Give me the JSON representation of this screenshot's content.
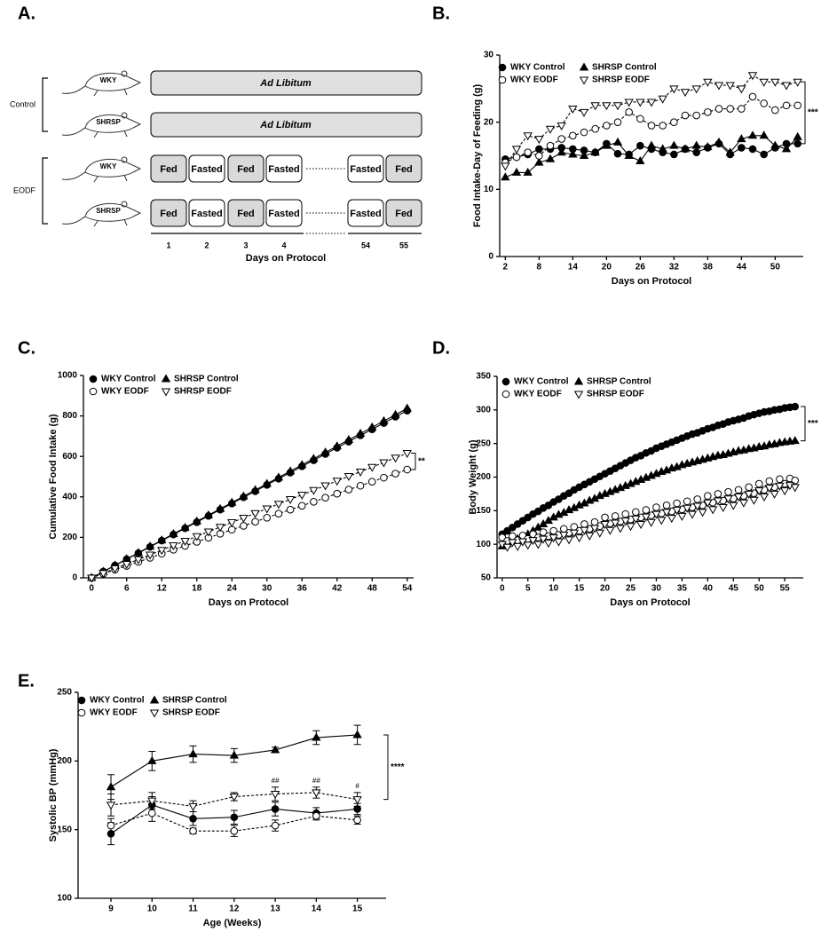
{
  "diagram": {
    "label": "A.",
    "groups": [
      {
        "name": "Control",
        "rows": [
          {
            "strain": "WKY",
            "cells": [
              {
                "text": "Ad Libitum",
                "fill": "#e0e0e0"
              }
            ]
          },
          {
            "strain": "SHRSP",
            "cells": [
              {
                "text": "Ad Libitum",
                "fill": "#e0e0e0"
              }
            ]
          }
        ]
      },
      {
        "name": "EODF",
        "rows": [
          {
            "strain": "WKY",
            "cells": [
              {
                "text": "Fed",
                "fill": "#d9d9d9"
              },
              {
                "text": "Fasted",
                "fill": "#ffffff"
              },
              {
                "text": "Fed",
                "fill": "#d9d9d9"
              },
              {
                "text": "Fasted",
                "fill": "#ffffff"
              },
              {
                "text": "Fasted",
                "fill": "#ffffff"
              },
              {
                "text": "Fed",
                "fill": "#d9d9d9"
              }
            ]
          },
          {
            "strain": "SHRSP",
            "cells": [
              {
                "text": "Fed",
                "fill": "#d9d9d9"
              },
              {
                "text": "Fasted",
                "fill": "#ffffff"
              },
              {
                "text": "Fed",
                "fill": "#d9d9d9"
              },
              {
                "text": "Fasted",
                "fill": "#ffffff"
              },
              {
                "text": "Fasted",
                "fill": "#ffffff"
              },
              {
                "text": "Fed",
                "fill": "#d9d9d9"
              }
            ]
          }
        ]
      }
    ],
    "days": [
      1,
      2,
      3,
      4,
      54,
      55
    ],
    "axis_label": "Days on Protocol"
  },
  "chart_data": [
    {
      "type": "line",
      "label": "B.",
      "y_label": "Food Intake-Day of Feeding (g)",
      "x_label": "Days on Protocol",
      "significance": "***",
      "x": [
        2,
        4,
        6,
        8,
        10,
        12,
        14,
        16,
        18,
        20,
        22,
        24,
        26,
        28,
        30,
        32,
        34,
        36,
        38,
        40,
        42,
        44,
        46,
        48,
        50,
        52,
        54
      ],
      "xlim": [
        1,
        55
      ],
      "xticks": [
        2,
        8,
        14,
        20,
        26,
        32,
        38,
        44,
        50
      ],
      "ylim": [
        0,
        30
      ],
      "yticks": [
        0,
        10,
        20,
        30
      ],
      "series": [
        {
          "name": "WKY Control",
          "color": "#000000",
          "marker": "circle-filled",
          "line_style": "solid",
          "values": [
            14.5,
            14.8,
            15.2,
            16,
            16,
            16.2,
            16,
            15.8,
            15.5,
            16.8,
            15.3,
            15.2,
            16.5,
            16,
            15.5,
            15.2,
            16,
            15.5,
            16.2,
            16.8,
            15.2,
            16.2,
            16,
            15.2,
            16.2,
            16.8,
            16.8
          ]
        },
        {
          "name": "SHRSP Control",
          "color": "#000000",
          "marker": "triangle-filled",
          "line_style": "solid",
          "values": [
            11.8,
            12.5,
            12.5,
            14,
            14.5,
            15.5,
            15.2,
            15,
            15.5,
            16.5,
            17,
            15,
            14.2,
            16.5,
            16,
            16.5,
            16,
            16.5,
            16.3,
            17,
            15.5,
            17.5,
            18,
            18,
            16.5,
            16,
            17.8
          ]
        },
        {
          "name": "WKY EODF",
          "color": "#000000",
          "marker": "circle-open",
          "line_style": "dashed",
          "values": [
            14,
            14.8,
            15.5,
            15,
            16.5,
            17.5,
            18,
            18.5,
            19,
            19.5,
            20,
            21.5,
            20.5,
            19.5,
            19.5,
            20,
            21,
            21,
            21.5,
            22,
            22,
            22,
            23.8,
            22.8,
            21.8,
            22.5,
            22.5
          ]
        },
        {
          "name": "SHRSP EODF",
          "color": "#000000",
          "marker": "triangle-down-open",
          "line_style": "dashed",
          "values": [
            13.5,
            16,
            18,
            17.5,
            19,
            19.5,
            22,
            21.5,
            22.5,
            22.5,
            22.5,
            23,
            23,
            23,
            23.5,
            25,
            24.5,
            25,
            26,
            25.5,
            25.5,
            25,
            27,
            26,
            26,
            25.5,
            26
          ]
        }
      ]
    },
    {
      "type": "line",
      "label": "C.",
      "y_label": "Cumulative Food Intake (g)",
      "x_label": "Days on Protocol",
      "significance": "**",
      "x": [
        0,
        2,
        4,
        6,
        8,
        10,
        12,
        14,
        16,
        18,
        20,
        22,
        24,
        26,
        28,
        30,
        32,
        34,
        36,
        38,
        40,
        42,
        44,
        46,
        48,
        50,
        52,
        54
      ],
      "xlim": [
        -1.4,
        55.1
      ],
      "xticks": [
        0,
        6,
        12,
        18,
        24,
        30,
        36,
        42,
        48,
        54
      ],
      "ylim": [
        0,
        1000
      ],
      "yticks": [
        0,
        200,
        400,
        600,
        800,
        1000
      ],
      "series": [
        {
          "name": "WKY Control",
          "color": "#000000",
          "marker": "circle-filled",
          "line_style": "solid",
          "values": [
            0,
            31,
            61,
            92,
            122,
            153,
            184,
            214,
            245,
            275,
            306,
            337,
            367,
            398,
            428,
            459,
            490,
            520,
            551,
            581,
            612,
            643,
            673,
            704,
            734,
            765,
            796,
            826
          ]
        },
        {
          "name": "SHRSP Control",
          "color": "#000000",
          "marker": "triangle-filled",
          "line_style": "solid",
          "values": [
            0,
            31,
            62,
            93,
            124,
            155,
            186,
            217,
            248,
            279,
            310,
            341,
            372,
            403,
            434,
            465,
            496,
            527,
            558,
            589,
            620,
            651,
            682,
            713,
            744,
            775,
            806,
            837
          ]
        },
        {
          "name": "WKY EODF",
          "color": "#000000",
          "marker": "circle-open",
          "line_style": "dashed",
          "values": [
            0,
            20,
            40,
            59,
            79,
            99,
            119,
            139,
            158,
            178,
            198,
            218,
            238,
            257,
            277,
            297,
            317,
            337,
            356,
            376,
            396,
            416,
            436,
            455,
            475,
            495,
            515,
            535
          ]
        },
        {
          "name": "SHRSP EODF",
          "color": "#000000",
          "marker": "triangle-down-open",
          "line_style": "dashed",
          "values": [
            0,
            23,
            46,
            68,
            91,
            114,
            137,
            160,
            182,
            205,
            228,
            251,
            274,
            296,
            319,
            342,
            365,
            388,
            410,
            433,
            456,
            479,
            502,
            524,
            547,
            570,
            593,
            616
          ]
        }
      ]
    },
    {
      "type": "line",
      "label": "D.",
      "y_label": "Body Weight (g)",
      "x_label": "Days on Protocol",
      "significance": "***",
      "x": [
        0,
        1,
        2,
        3,
        4,
        5,
        6,
        7,
        8,
        9,
        10,
        11,
        12,
        13,
        14,
        15,
        16,
        17,
        18,
        19,
        20,
        21,
        22,
        23,
        24,
        25,
        26,
        27,
        28,
        29,
        30,
        31,
        32,
        33,
        34,
        35,
        36,
        37,
        38,
        39,
        40,
        41,
        42,
        43,
        44,
        45,
        46,
        47,
        48,
        49,
        50,
        51,
        52,
        53,
        54,
        55,
        56,
        57
      ],
      "xlim": [
        -1,
        58.6
      ],
      "xticks": [
        0,
        5,
        10,
        15,
        20,
        25,
        30,
        35,
        40,
        45,
        50,
        55
      ],
      "ylim": [
        50,
        350
      ],
      "yticks": [
        50,
        100,
        150,
        200,
        250,
        300,
        350
      ],
      "series": [
        {
          "name": "WKY Control",
          "color": "#000000",
          "marker": "circle-filled",
          "line_style": "solid",
          "values": [
            115,
            120,
            125,
            130,
            135,
            140,
            145,
            149,
            154,
            158,
            163,
            167,
            172,
            176,
            181,
            185,
            189,
            193,
            197,
            201,
            205,
            209,
            213,
            217,
            221,
            225,
            229,
            232,
            236,
            239,
            243,
            246,
            249,
            252,
            255,
            258,
            261,
            264,
            266,
            269,
            272,
            274,
            277,
            279,
            282,
            284,
            286,
            288,
            291,
            293,
            295,
            297,
            298,
            300,
            301,
            303,
            304,
            305
          ]
        },
        {
          "name": "SHRSP Control",
          "color": "#000000",
          "marker": "triangle-filled",
          "line_style": "solid",
          "values": [
            97,
            100,
            104,
            108,
            111,
            115,
            120,
            125,
            130,
            135,
            140,
            144,
            147,
            151,
            154,
            158,
            161,
            165,
            168,
            172,
            175,
            178,
            181,
            184,
            187,
            190,
            193,
            196,
            199,
            202,
            205,
            208,
            210,
            213,
            215,
            218,
            220,
            222,
            224,
            226,
            228,
            230,
            232,
            233,
            235,
            237,
            239,
            240,
            242,
            243,
            245,
            246,
            248,
            249,
            251,
            252,
            253,
            254
          ]
        },
        {
          "name": "WKY EODF",
          "color": "#000000",
          "marker": "circle-open",
          "line_style": "dashed",
          "values": [
            110,
            105,
            112,
            106,
            113,
            108,
            115,
            110,
            118,
            112,
            120,
            114,
            123,
            117,
            126,
            120,
            130,
            123,
            133,
            127,
            140,
            131,
            142,
            134,
            145,
            137,
            148,
            140,
            151,
            143,
            155,
            146,
            158,
            149,
            161,
            152,
            164,
            155,
            167,
            158,
            172,
            162,
            175,
            165,
            178,
            168,
            181,
            172,
            185,
            176,
            190,
            181,
            194,
            185,
            197,
            190,
            198,
            195
          ]
        },
        {
          "name": "SHRSP EODF",
          "color": "#000000",
          "marker": "triangle-down-open",
          "line_style": "dashed",
          "values": [
            100,
            96,
            103,
            97,
            104,
            99,
            106,
            100,
            108,
            102,
            110,
            104,
            114,
            107,
            117,
            110,
            121,
            113,
            124,
            117,
            130,
            121,
            132,
            124,
            135,
            127,
            138,
            130,
            141,
            133,
            145,
            136,
            148,
            139,
            151,
            142,
            154,
            145,
            157,
            148,
            162,
            152,
            165,
            155,
            168,
            158,
            171,
            162,
            175,
            166,
            180,
            171,
            184,
            175,
            187,
            180,
            188,
            185
          ]
        }
      ]
    },
    {
      "type": "line",
      "label": "E.",
      "y_label": "Systolic BP (mmHg)",
      "x_label": "Age (Weeks)",
      "significance": "****",
      "x": [
        9,
        10,
        11,
        12,
        13,
        14,
        15
      ],
      "xlim": [
        8.2,
        15.7
      ],
      "xticks": [
        9,
        10,
        11,
        12,
        13,
        14,
        15
      ],
      "ylim": [
        100,
        250
      ],
      "yticks": [
        100,
        150,
        200,
        250
      ],
      "annotations": [
        {
          "text": "##",
          "x": 13
        },
        {
          "text": "##",
          "x": 14
        },
        {
          "text": "#",
          "x": 15
        }
      ],
      "series": [
        {
          "name": "WKY Control",
          "color": "#000000",
          "marker": "circle-filled",
          "line_style": "solid",
          "values": [
            147,
            168,
            158,
            159,
            165,
            162,
            165
          ],
          "errors": [
            8,
            6,
            5,
            5,
            5,
            4,
            4
          ]
        },
        {
          "name": "SHRSP Control",
          "color": "#000000",
          "marker": "triangle-filled",
          "line_style": "solid",
          "values": [
            181,
            200,
            205,
            204,
            208,
            217,
            219
          ],
          "errors": [
            9,
            7,
            6,
            5,
            2,
            5,
            7
          ]
        },
        {
          "name": "WKY EODF",
          "color": "#000000",
          "marker": "circle-open",
          "line_style": "dashed",
          "values": [
            153,
            162,
            149,
            149,
            153,
            160,
            157
          ],
          "errors": [
            5,
            6,
            2,
            4,
            4,
            3,
            3
          ]
        },
        {
          "name": "SHRSP EODF",
          "color": "#000000",
          "marker": "triangle-down-open",
          "line_style": "dashed",
          "values": [
            168,
            171,
            167,
            174,
            176,
            177,
            172
          ],
          "errors": [
            8,
            6,
            4,
            3,
            5,
            4,
            5
          ]
        }
      ]
    }
  ]
}
